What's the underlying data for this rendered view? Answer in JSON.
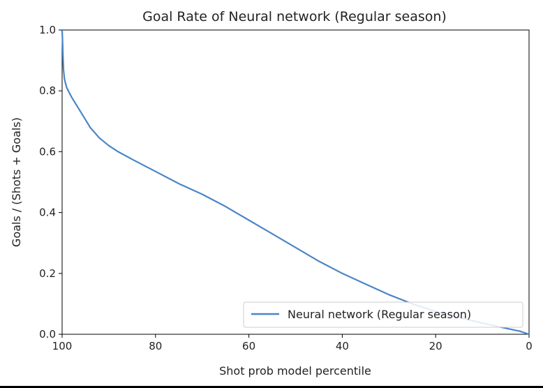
{
  "chart_data": {
    "type": "line",
    "title": "Goal Rate of Neural network (Regular season)",
    "xlabel": "Shot prob model percentile",
    "ylabel": "Goals / (Shots + Goals)",
    "xlim": [
      100,
      0
    ],
    "ylim": [
      0.0,
      1.0
    ],
    "x_ticks": [
      "100",
      "80",
      "60",
      "40",
      "20",
      "0"
    ],
    "y_ticks": [
      "0.0",
      "0.2",
      "0.4",
      "0.6",
      "0.8",
      "1.0"
    ],
    "grid": false,
    "legend_position": "lower-right",
    "series": [
      {
        "name": "Neural network (Regular season)",
        "color": "#4a86c5",
        "x": [
          100,
          99.9,
          99.8,
          99.7,
          99.5,
          99.2,
          99,
          98.5,
          98,
          97,
          96,
          95,
          94,
          92,
          90,
          88,
          85,
          80,
          75,
          70,
          65,
          60,
          55,
          50,
          45,
          40,
          35,
          30,
          25,
          20,
          15,
          10,
          5,
          2,
          0
        ],
        "y": [
          1.0,
          0.96,
          0.91,
          0.87,
          0.84,
          0.82,
          0.81,
          0.795,
          0.78,
          0.755,
          0.73,
          0.705,
          0.68,
          0.645,
          0.62,
          0.6,
          0.575,
          0.535,
          0.495,
          0.46,
          0.42,
          0.375,
          0.33,
          0.285,
          0.24,
          0.2,
          0.165,
          0.13,
          0.1,
          0.075,
          0.055,
          0.037,
          0.02,
          0.01,
          0.0
        ]
      }
    ]
  }
}
